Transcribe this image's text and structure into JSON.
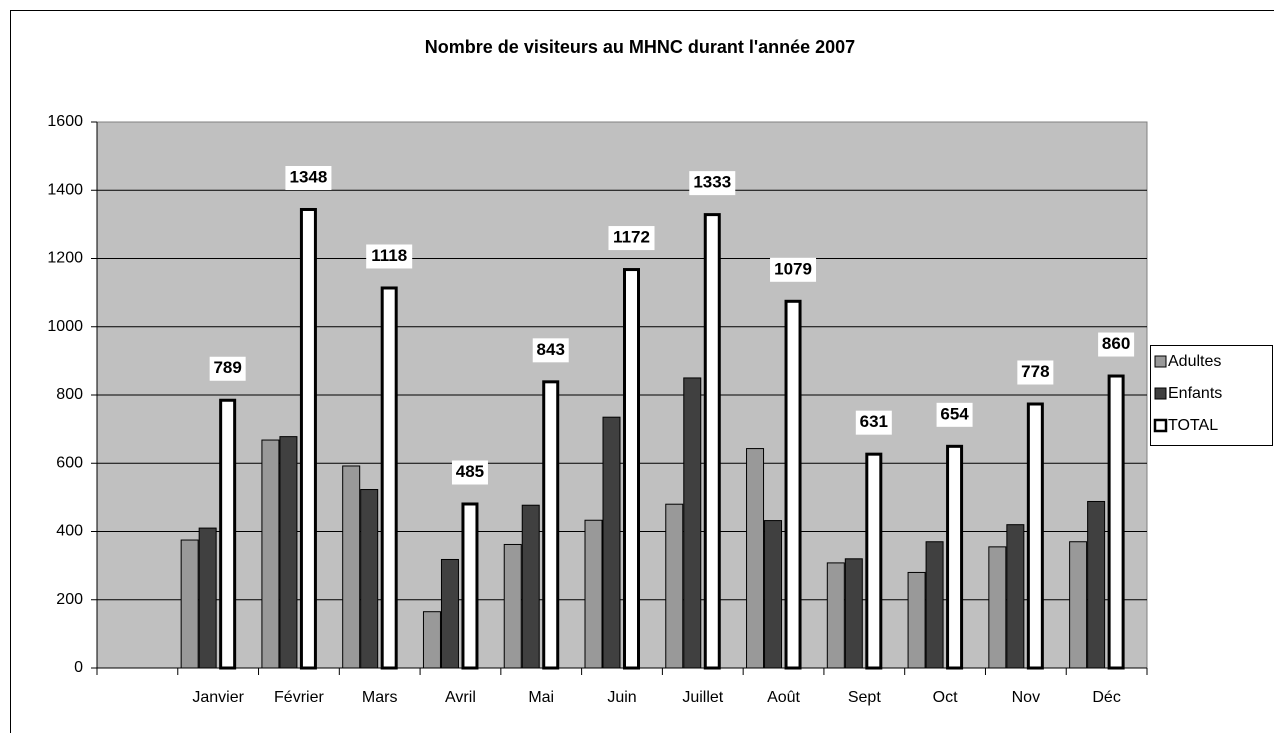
{
  "chart_data": {
    "type": "bar",
    "title": "Nombre de visiteurs au MHNC durant l'année 2007",
    "categories": [
      null,
      "Janvier",
      "Février",
      "Mars",
      "Avril",
      "Mai",
      "Juin",
      "Juillet",
      "Août",
      "Sept",
      "Oct",
      "Nov",
      "Déc"
    ],
    "series": [
      {
        "name": "Adultes",
        "color": "#999999",
        "values": [
          null,
          375,
          668,
          592,
          165,
          362,
          433,
          480,
          643,
          308,
          280,
          355,
          370
        ]
      },
      {
        "name": "Enfants",
        "color": "#404040",
        "values": [
          null,
          410,
          678,
          523,
          318,
          477,
          735,
          850,
          432,
          320,
          370,
          420,
          488
        ]
      },
      {
        "name": "TOTAL",
        "color": "#ffffff",
        "values": [
          null,
          789,
          1348,
          1118,
          485,
          843,
          1172,
          1333,
          1079,
          631,
          654,
          778,
          860
        ],
        "data_labels": true
      }
    ],
    "ylim": [
      0,
      1600
    ],
    "yticks": [
      0,
      200,
      400,
      600,
      800,
      1000,
      1200,
      1400,
      1600
    ],
    "grid": true,
    "legend": "right",
    "plot_background": "#c0c0c0"
  }
}
